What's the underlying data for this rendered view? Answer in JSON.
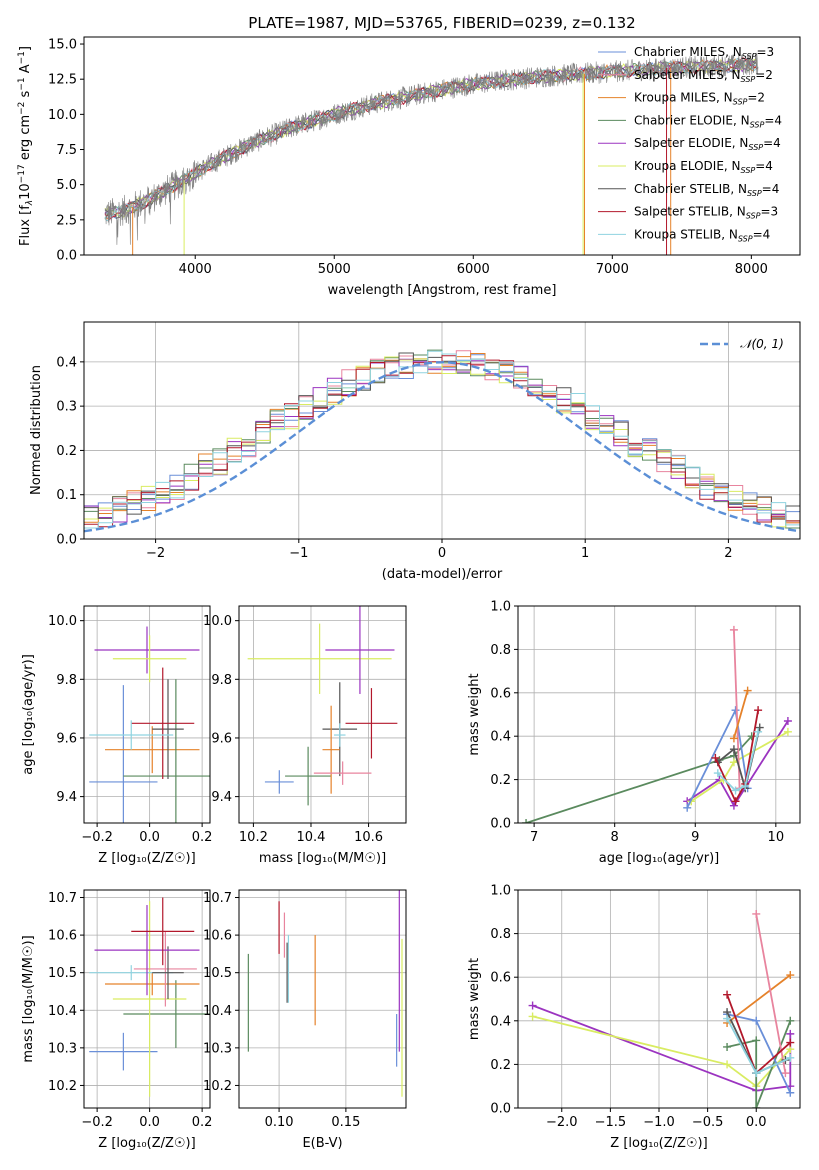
{
  "figure": {
    "title": "PLATE=1987, MJD=53765, FIBERID=0239, z=0.132"
  },
  "colors": {
    "Chabrier MILES": "#6a8fd8",
    "Salpeter MILES": "#e8849e",
    "Kroupa MILES": "#e5822a",
    "Chabrier ELODIE": "#5a8a5e",
    "Salpeter ELODIE": "#9b34c0",
    "Kroupa ELODIE": "#d9ec62",
    "Chabrier STELIB": "#555555",
    "Salpeter STELIB": "#b2182b",
    "Kroupa STELIB": "#8fd3e0",
    "data": "#808080",
    "normal": "#5b8fd6"
  },
  "chart_data": [
    {
      "id": "spectrum",
      "type": "line",
      "xlabel": "wavelength [Angstrom, rest frame]",
      "ylabel_parts": [
        "Flux [f",
        "λ",
        "10",
        "−17",
        " erg cm",
        "−2",
        " s",
        "−1",
        " A",
        "−1",
        "]"
      ],
      "xlim": [
        3200,
        8350
      ],
      "ylim": [
        0,
        15.5
      ],
      "xticks": [
        4000,
        5000,
        6000,
        7000,
        8000
      ],
      "yticks": [
        0.0,
        2.5,
        5.0,
        7.5,
        10.0,
        12.5,
        15.0
      ],
      "ytick_labels": [
        "0.0",
        "2.5",
        "5.0",
        "7.5",
        "10.0",
        "12.5",
        "15.0"
      ],
      "trend": {
        "x": [
          3350,
          3500,
          3700,
          3900,
          4100,
          4400,
          4700,
          5000,
          5300,
          5600,
          5900,
          6200,
          6500,
          6800,
          7100,
          7400,
          7700,
          8050
        ],
        "y": [
          2.9,
          3.2,
          4.1,
          5.2,
          6.4,
          7.9,
          9.1,
          10.0,
          10.8,
          11.4,
          12.0,
          12.4,
          12.7,
          12.9,
          13.1,
          13.3,
          13.4,
          13.6
        ]
      },
      "legend": [
        {
          "label": "Chabrier MILES, N",
          "sub": "SSP",
          "suffix": "=3",
          "series": "Chabrier MILES"
        },
        {
          "label": "Salpeter MILES, N",
          "sub": "SSP",
          "suffix": "=2",
          "series": "Salpeter MILES"
        },
        {
          "label": "Kroupa MILES, N",
          "sub": "SSP",
          "suffix": "=2",
          "series": "Kroupa MILES"
        },
        {
          "label": "Chabrier ELODIE, N",
          "sub": "SSP",
          "suffix": "=4",
          "series": "Chabrier ELODIE"
        },
        {
          "label": "Salpeter ELODIE, N",
          "sub": "SSP",
          "suffix": "=4",
          "series": "Salpeter ELODIE"
        },
        {
          "label": "Kroupa ELODIE, N",
          "sub": "SSP",
          "suffix": "=4",
          "series": "Kroupa ELODIE"
        },
        {
          "label": "Chabrier STELIB, N",
          "sub": "SSP",
          "suffix": "=4",
          "series": "Chabrier STELIB"
        },
        {
          "label": "Salpeter STELIB, N",
          "sub": "SSP",
          "suffix": "=3",
          "series": "Salpeter STELIB"
        },
        {
          "label": "Kroupa STELIB, N",
          "sub": "SSP",
          "suffix": "=4",
          "series": "Kroupa STELIB"
        }
      ]
    },
    {
      "id": "residuals",
      "type": "histogram",
      "xlabel": "(data-model)/error",
      "ylabel": "Normed distribution",
      "xlim": [
        -2.5,
        2.5
      ],
      "ylim": [
        0,
        0.49
      ],
      "xticks": [
        -2,
        -1,
        0,
        1,
        2
      ],
      "xtick_labels": [
        "−2",
        "−1",
        "0",
        "1",
        "2"
      ],
      "yticks": [
        0.0,
        0.1,
        0.2,
        0.3,
        0.4
      ],
      "ytick_labels": [
        "0.0",
        "0.1",
        "0.2",
        "0.3",
        "0.4"
      ],
      "bin_width": 0.1,
      "legend": "𝒩(0, 1)",
      "base_density": [
        0.045,
        0.05,
        0.055,
        0.061,
        0.068,
        0.075,
        0.083,
        0.091,
        0.1,
        0.109,
        0.119,
        0.129,
        0.14,
        0.151,
        0.163,
        0.175,
        0.187,
        0.2,
        0.213,
        0.225,
        0.238,
        0.251,
        0.264,
        0.276,
        0.288,
        0.3,
        0.312,
        0.323,
        0.334,
        0.344,
        0.353,
        0.361,
        0.369,
        0.376,
        0.382,
        0.387,
        0.391,
        0.394,
        0.397,
        0.398,
        0.399,
        0.398,
        0.397,
        0.394,
        0.391,
        0.387,
        0.382,
        0.376,
        0.369,
        0.361,
        0.353,
        0.344,
        0.334,
        0.323,
        0.312,
        0.3,
        0.288,
        0.276,
        0.264,
        0.251,
        0.238,
        0.225,
        0.213,
        0.2,
        0.187,
        0.175,
        0.163,
        0.151,
        0.14,
        0.129,
        0.119,
        0.109,
        0.1,
        0.091,
        0.083,
        0.075,
        0.068,
        0.061,
        0.055,
        0.05,
        0.045
      ]
    },
    {
      "id": "age-vs-Z",
      "type": "errorbar",
      "xlabel": "Z [log₁₀(Z/Z☉)]",
      "ylabel": "age  [log₁₀(age/yr)]",
      "xlim": [
        -0.25,
        0.23
      ],
      "ylim": [
        9.31,
        10.05
      ],
      "xticks": [
        -0.2,
        0.0,
        0.2
      ],
      "xtick_labels": [
        "−0.2",
        "0.0",
        "0.2"
      ],
      "yticks": [
        9.4,
        9.6,
        9.8,
        10.0
      ],
      "ytick_labels": [
        "9.4",
        "9.6",
        "9.8",
        "10.0"
      ],
      "points": [
        {
          "series": "Chabrier MILES",
          "x": -0.1,
          "xerr": 0.13,
          "y": 9.45,
          "yerr": 0.33
        },
        {
          "series": "Kroupa MILES",
          "x": 0.01,
          "xerr": 0.18,
          "y": 9.56,
          "yerr": 0.08
        },
        {
          "series": "Salpeter ELODIE",
          "x": -0.01,
          "xerr": 0.2,
          "y": 9.9,
          "yerr": 0.08
        },
        {
          "series": "Kroupa ELODIE",
          "x": 0.0,
          "xerr": 0.14,
          "y": 9.87,
          "yerr": 0.08
        },
        {
          "series": "Chabrier ELODIE",
          "x": 0.1,
          "xerr": 0.2,
          "y": 9.47,
          "yerr": 0.33
        },
        {
          "series": "Chabrier STELIB",
          "x": 0.07,
          "xerr": 0.06,
          "y": 9.63,
          "yerr": 0.17
        },
        {
          "series": "Salpeter STELIB",
          "x": 0.05,
          "xerr": 0.12,
          "y": 9.65,
          "yerr": 0.19
        },
        {
          "series": "Kroupa STELIB",
          "x": -0.07,
          "xerr": 0.16,
          "y": 9.61,
          "yerr": 0.05
        }
      ]
    },
    {
      "id": "age-vs-mass",
      "type": "errorbar",
      "xlabel": "mass [log₁₀(M/M☉)]",
      "ylabel": "",
      "xlim": [
        10.15,
        10.73
      ],
      "ylim": [
        9.31,
        10.05
      ],
      "xticks": [
        10.2,
        10.4,
        10.6
      ],
      "xtick_labels": [
        "10.2",
        "10.4",
        "10.6"
      ],
      "yticks": [
        9.4,
        9.6,
        9.8,
        10.0
      ],
      "ytick_labels": [
        "9.4",
        "9.6",
        "9.8",
        "10.0"
      ],
      "points": [
        {
          "series": "Kroupa ELODIE",
          "x": 10.43,
          "xerr": 0.25,
          "y": 9.87,
          "yerr": 0.12
        },
        {
          "series": "Salpeter ELODIE",
          "x": 10.57,
          "xerr": 0.12,
          "y": 9.9,
          "yerr": 0.15
        },
        {
          "series": "Chabrier MILES",
          "x": 10.29,
          "xerr": 0.05,
          "y": 9.45,
          "yerr": 0.04
        },
        {
          "series": "Chabrier ELODIE",
          "x": 10.39,
          "xerr": 0.08,
          "y": 9.47,
          "yerr": 0.1
        },
        {
          "series": "Chabrier STELIB",
          "x": 10.5,
          "xerr": 0.06,
          "y": 9.63,
          "yerr": 0.16
        },
        {
          "series": "Salpeter STELIB",
          "x": 10.61,
          "xerr": 0.09,
          "y": 9.65,
          "yerr": 0.12
        },
        {
          "series": "Kroupa MILES",
          "x": 10.47,
          "xerr": 0.03,
          "y": 9.56,
          "yerr": 0.15
        },
        {
          "series": "Salpeter MILES",
          "x": 10.51,
          "xerr": 0.1,
          "y": 9.48,
          "yerr": 0.04
        },
        {
          "series": "Kroupa STELIB",
          "x": 10.5,
          "xerr": 0.02,
          "y": 9.61,
          "yerr": 0.04
        }
      ]
    },
    {
      "id": "weight-vs-age",
      "type": "line",
      "xlabel": "age  [log₁₀(age/yr)]",
      "ylabel": "mass weight",
      "xlim": [
        6.8,
        10.3
      ],
      "ylim": [
        0,
        1.0
      ],
      "xticks": [
        7,
        8,
        9,
        10
      ],
      "xtick_labels": [
        "7",
        "8",
        "9",
        "10"
      ],
      "yticks": [
        0.0,
        0.2,
        0.4,
        0.6,
        0.8,
        1.0
      ],
      "ytick_labels": [
        "0.0",
        "0.2",
        "0.4",
        "0.6",
        "0.8",
        "1.0"
      ],
      "series": [
        {
          "name": "Chabrier ELODIE",
          "x": [
            6.9,
            9.3,
            9.48,
            9.7
          ],
          "y": [
            0.0,
            0.29,
            0.31,
            0.4
          ]
        },
        {
          "name": "Salpeter ELODIE",
          "x": [
            8.9,
            9.3,
            9.48,
            10.15
          ],
          "y": [
            0.1,
            0.2,
            0.08,
            0.47
          ]
        },
        {
          "name": "Kroupa ELODIE",
          "x": [
            8.95,
            9.35,
            9.48,
            10.15
          ],
          "y": [
            0.1,
            0.2,
            0.28,
            0.42
          ]
        },
        {
          "name": "Chabrier MILES",
          "x": [
            8.9,
            9.5,
            9.65
          ],
          "y": [
            0.07,
            0.52,
            0.16
          ]
        },
        {
          "name": "Salpeter MILES",
          "x": [
            9.48,
            9.55
          ],
          "y": [
            0.89,
            0.16
          ]
        },
        {
          "name": "Kroupa MILES",
          "x": [
            9.48,
            9.65
          ],
          "y": [
            0.39,
            0.61
          ]
        },
        {
          "name": "Chabrier STELIB",
          "x": [
            9.28,
            9.48,
            9.62,
            9.8
          ],
          "y": [
            0.28,
            0.34,
            0.16,
            0.44
          ]
        },
        {
          "name": "Salpeter STELIB",
          "x": [
            9.25,
            9.5,
            9.62,
            9.78
          ],
          "y": [
            0.3,
            0.1,
            0.18,
            0.52
          ]
        },
        {
          "name": "Kroupa STELIB",
          "x": [
            9.28,
            9.5,
            9.62,
            9.78
          ],
          "y": [
            0.23,
            0.15,
            0.17,
            0.42
          ]
        }
      ]
    },
    {
      "id": "mass-vs-Z",
      "type": "errorbar",
      "xlabel": "Z [log₁₀(Z/Z☉)]",
      "ylabel": "mass [log₁₀(M/M☉)]",
      "xlim": [
        -0.25,
        0.23
      ],
      "ylim": [
        10.14,
        10.72
      ],
      "xticks": [
        -0.2,
        0.0,
        0.2
      ],
      "xtick_labels": [
        "−0.2",
        "0.0",
        "0.2"
      ],
      "yticks": [
        10.2,
        10.3,
        10.4,
        10.5,
        10.6,
        10.7
      ],
      "ytick_labels": [
        "10.2",
        "10.3",
        "10.4",
        "10.5",
        "10.6",
        "10.7"
      ],
      "points": [
        {
          "series": "Chabrier MILES",
          "x": -0.1,
          "xerr": 0.13,
          "y": 10.29,
          "yerr": 0.05
        },
        {
          "series": "Chabrier ELODIE",
          "x": 0.1,
          "xerr": 0.2,
          "y": 10.39,
          "yerr": 0.09
        },
        {
          "series": "Kroupa ELODIE",
          "x": 0.0,
          "xerr": 0.14,
          "y": 10.43,
          "yerr": 0.26
        },
        {
          "series": "Kroupa MILES",
          "x": 0.01,
          "xerr": 0.18,
          "y": 10.47,
          "yerr": 0.03
        },
        {
          "series": "Salpeter MILES",
          "x": 0.06,
          "xerr": 0.12,
          "y": 10.51,
          "yerr": 0.1
        },
        {
          "series": "Kroupa STELIB",
          "x": -0.07,
          "xerr": 0.16,
          "y": 10.5,
          "yerr": 0.02
        },
        {
          "series": "Chabrier STELIB",
          "x": 0.07,
          "xerr": 0.06,
          "y": 10.5,
          "yerr": 0.07
        },
        {
          "series": "Salpeter ELODIE",
          "x": -0.01,
          "xerr": 0.2,
          "y": 10.56,
          "yerr": 0.12
        },
        {
          "series": "Salpeter STELIB",
          "x": 0.05,
          "xerr": 0.12,
          "y": 10.61,
          "yerr": 0.09
        }
      ]
    },
    {
      "id": "mass-vs-EBV",
      "type": "errorbar",
      "xlabel": "E(B-V)",
      "ylabel": "",
      "xlim": [
        0.07,
        0.195
      ],
      "ylim": [
        10.14,
        10.72
      ],
      "xticks": [
        0.1,
        0.15
      ],
      "xtick_labels": [
        "0.10",
        "0.15"
      ],
      "yticks": [
        10.2,
        10.3,
        10.4,
        10.5,
        10.6,
        10.7
      ],
      "ytick_labels": [
        "10.2",
        "10.3",
        "10.4",
        "10.5",
        "10.6",
        "10.7"
      ],
      "points": [
        {
          "series": "Chabrier ELODIE",
          "x": 0.077,
          "xerr": 0,
          "y": 10.42,
          "yerr": 0.13
        },
        {
          "series": "Salpeter STELIB",
          "x": 0.1,
          "xerr": 0,
          "y": 10.62,
          "yerr": 0.07
        },
        {
          "series": "Salpeter MILES",
          "x": 0.104,
          "xerr": 0,
          "y": 10.6,
          "yerr": 0.06
        },
        {
          "series": "Kroupa STELIB",
          "x": 0.107,
          "xerr": 0,
          "y": 10.51,
          "yerr": 0.09
        },
        {
          "series": "Chabrier STELIB",
          "x": 0.106,
          "xerr": 0,
          "y": 10.5,
          "yerr": 0.08
        },
        {
          "series": "Kroupa MILES",
          "x": 0.127,
          "xerr": 0,
          "y": 10.48,
          "yerr": 0.12
        },
        {
          "series": "Chabrier MILES",
          "x": 0.188,
          "xerr": 0,
          "y": 10.32,
          "yerr": 0.07
        },
        {
          "series": "Salpeter ELODIE",
          "x": 0.19,
          "xerr": 0,
          "y": 10.54,
          "yerr": 0.25
        },
        {
          "series": "Kroupa ELODIE",
          "x": 0.192,
          "xerr": 0,
          "y": 10.38,
          "yerr": 0.21
        }
      ]
    },
    {
      "id": "weight-vs-Z",
      "type": "line",
      "xlabel": "Z [log₁₀(Z/Z☉)]",
      "ylabel": "mass weight",
      "xlim": [
        -2.45,
        0.45
      ],
      "ylim": [
        0,
        1.0
      ],
      "xticks": [
        -2.0,
        -1.5,
        -1.0,
        -0.5,
        0.0
      ],
      "xtick_labels": [
        "−2.0",
        "−1.5",
        "−1.0",
        "−0.5",
        "0.0"
      ],
      "yticks": [
        0.0,
        0.2,
        0.4,
        0.6,
        0.8,
        1.0
      ],
      "ytick_labels": [
        "0.0",
        "0.2",
        "0.4",
        "0.6",
        "0.8",
        "1.0"
      ],
      "series": [
        {
          "name": "Salpeter ELODIE",
          "x": [
            -2.3,
            0.0,
            0.35,
            0.35
          ],
          "y": [
            0.47,
            0.08,
            0.1,
            0.34
          ]
        },
        {
          "name": "Kroupa ELODIE",
          "x": [
            -2.3,
            -0.3,
            0.0,
            0.35
          ],
          "y": [
            0.42,
            0.2,
            0.1,
            0.27
          ]
        },
        {
          "name": "Chabrier ELODIE",
          "x": [
            -0.3,
            0.0,
            0.0,
            0.35
          ],
          "y": [
            0.28,
            0.31,
            0.0,
            0.4
          ]
        },
        {
          "name": "Kroupa MILES",
          "x": [
            -0.3,
            0.35
          ],
          "y": [
            0.39,
            0.61
          ]
        },
        {
          "name": "Salpeter MILES",
          "x": [
            0.0,
            0.3
          ],
          "y": [
            0.89,
            0.16
          ]
        },
        {
          "name": "Chabrier MILES",
          "x": [
            -0.3,
            0.0,
            0.35
          ],
          "y": [
            0.43,
            0.4,
            0.07
          ]
        },
        {
          "name": "Salpeter STELIB",
          "x": [
            -0.3,
            0.0,
            0.35
          ],
          "y": [
            0.52,
            0.16,
            0.3
          ]
        },
        {
          "name": "Chabrier STELIB",
          "x": [
            -0.3,
            0.0,
            0.3
          ],
          "y": [
            0.44,
            0.16,
            0.22
          ]
        },
        {
          "name": "Kroupa STELIB",
          "x": [
            -0.3,
            0.0,
            0.35
          ],
          "y": [
            0.41,
            0.16,
            0.23
          ]
        }
      ]
    }
  ]
}
